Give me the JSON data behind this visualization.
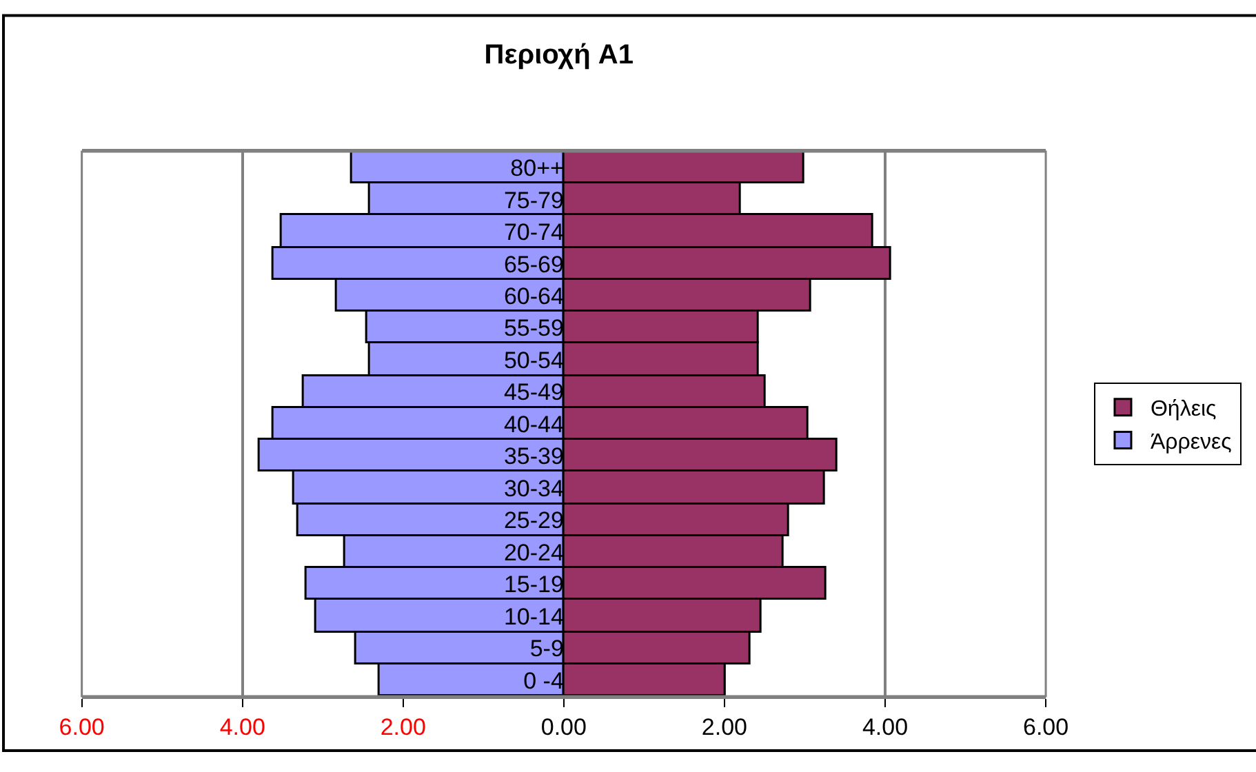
{
  "chart_data": {
    "type": "bar",
    "title": "Περιοχή A1",
    "orientation": "horizontal",
    "stacked": true,
    "categories": [
      "80++",
      "75-79",
      "70-74",
      "65-69",
      "60-64",
      "55-59",
      "50-54",
      "45-49",
      "40-44",
      "35-39",
      "30-34",
      "25-29",
      "20-24",
      "15-19",
      "10-14",
      "5-9",
      "0 -4"
    ],
    "series": [
      {
        "name": "Άρρενες",
        "color": "#9999ff",
        "values": [
          -2.64,
          -2.42,
          -3.52,
          -3.61,
          -2.83,
          -2.45,
          -2.42,
          -3.23,
          -3.61,
          -3.78,
          -3.36,
          -3.3,
          -2.73,
          -3.21,
          -3.08,
          -2.58,
          -2.29
        ]
      },
      {
        "name": "Θήλεις",
        "color": "#993366",
        "values": [
          3.0,
          2.21,
          3.85,
          4.07,
          3.08,
          2.43,
          2.43,
          2.52,
          3.05,
          3.41,
          3.25,
          2.8,
          2.74,
          3.27,
          2.46,
          2.33,
          2.01
        ]
      }
    ],
    "xlim": [
      -6,
      6
    ],
    "xticks": [
      {
        "value": -6,
        "label": "6.00"
      },
      {
        "value": -4,
        "label": "4.00"
      },
      {
        "value": -2,
        "label": "2.00"
      },
      {
        "value": 0,
        "label": "0.00"
      },
      {
        "value": 2,
        "label": "2.00"
      },
      {
        "value": 4,
        "label": "4.00"
      },
      {
        "value": 6,
        "label": "6.00"
      }
    ],
    "grid": "x",
    "legend": "right"
  }
}
